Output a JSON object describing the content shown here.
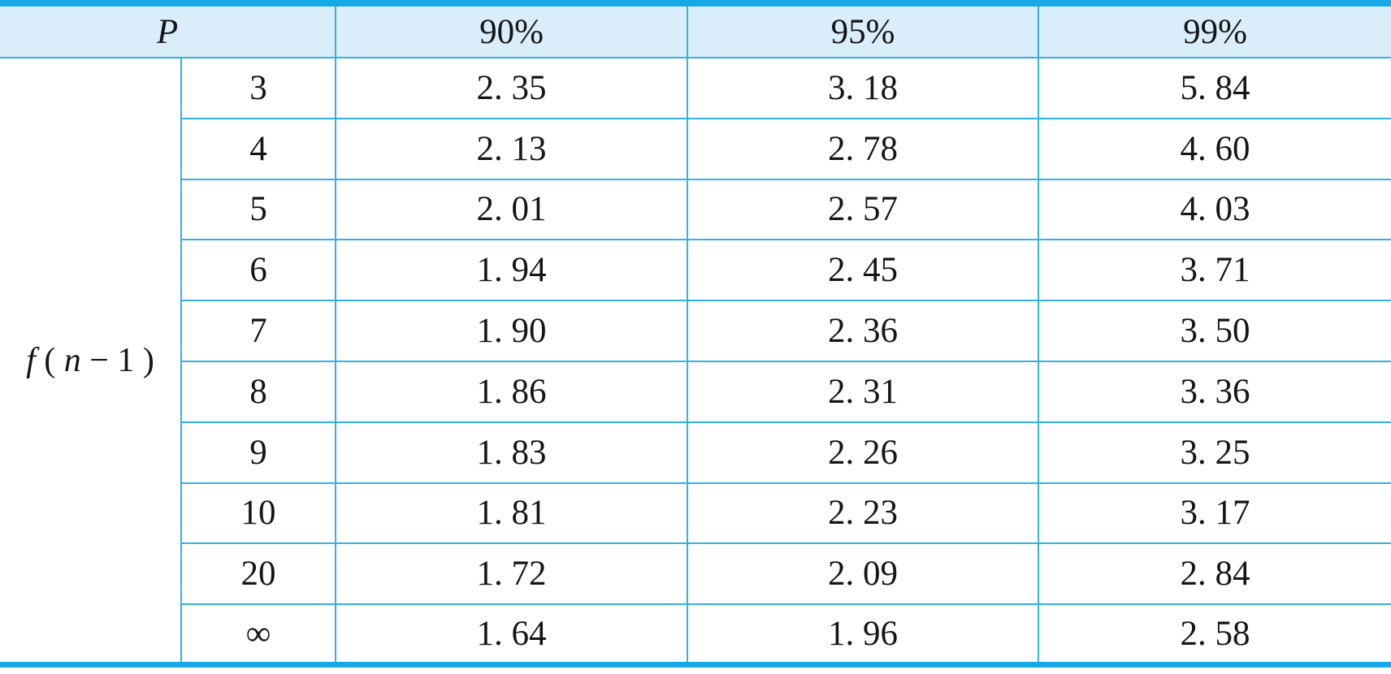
{
  "colors": {
    "border_thick": "#15aae6",
    "border_thin": "#31b1e8",
    "header_bg": "#d9eefa",
    "text": "#151515"
  },
  "table": {
    "header": {
      "p_label": "P",
      "columns": [
        "90%",
        "95%",
        "99%"
      ]
    },
    "stub": {
      "parts": [
        "f",
        " ( ",
        "n",
        " − 1 )"
      ]
    },
    "rows": [
      {
        "df": "3",
        "v90": "2. 35",
        "v95": "3. 18",
        "v99": "5. 84"
      },
      {
        "df": "4",
        "v90": "2. 13",
        "v95": "2. 78",
        "v99": "4. 60"
      },
      {
        "df": "5",
        "v90": "2. 01",
        "v95": "2. 57",
        "v99": "4. 03"
      },
      {
        "df": "6",
        "v90": "1. 94",
        "v95": "2. 45",
        "v99": "3. 71"
      },
      {
        "df": "7",
        "v90": "1. 90",
        "v95": "2. 36",
        "v99": "3. 50"
      },
      {
        "df": "8",
        "v90": "1. 86",
        "v95": "2. 31",
        "v99": "3. 36"
      },
      {
        "df": "9",
        "v90": "1. 83",
        "v95": "2. 26",
        "v99": "3. 25"
      },
      {
        "df": "10",
        "v90": "1. 81",
        "v95": "2. 23",
        "v99": "3. 17"
      },
      {
        "df": "20",
        "v90": "1. 72",
        "v95": "2. 09",
        "v99": "2. 84"
      },
      {
        "df": "∞",
        "v90": "1. 64",
        "v95": "1. 96",
        "v99": "2. 58"
      }
    ]
  },
  "chart_data": {
    "type": "table",
    "title": "",
    "columns": [
      "P",
      "90%",
      "95%",
      "99%"
    ],
    "row_group_label": "f (n−1)",
    "rows": [
      [
        "3",
        2.35,
        3.18,
        5.84
      ],
      [
        "4",
        2.13,
        2.78,
        4.6
      ],
      [
        "5",
        2.01,
        2.57,
        4.03
      ],
      [
        "6",
        1.94,
        2.45,
        3.71
      ],
      [
        "7",
        1.9,
        2.36,
        3.5
      ],
      [
        "8",
        1.86,
        2.31,
        3.36
      ],
      [
        "9",
        1.83,
        2.26,
        3.25
      ],
      [
        "10",
        1.81,
        2.23,
        3.17
      ],
      [
        "20",
        1.72,
        2.09,
        2.84
      ],
      [
        "∞",
        1.64,
        1.96,
        2.58
      ]
    ]
  }
}
